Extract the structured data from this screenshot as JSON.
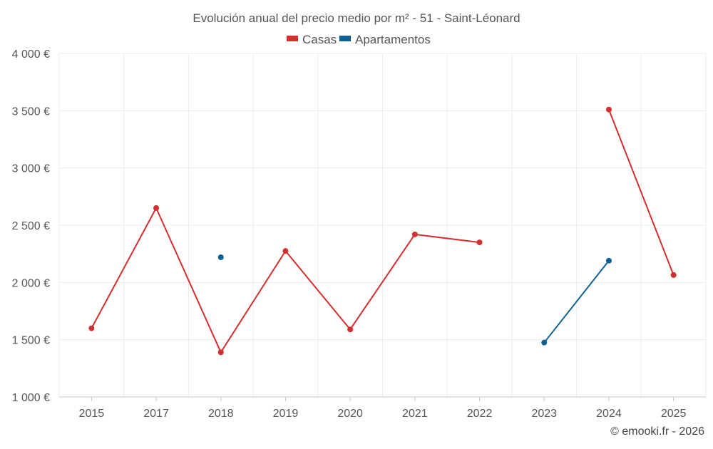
{
  "chart_data": {
    "type": "line",
    "title": "Evolución anual del precio medio por m² - 51 - Saint-Léonard",
    "categories": [
      "2015",
      "2017",
      "2018",
      "2019",
      "2020",
      "2021",
      "2022",
      "2023",
      "2024",
      "2025"
    ],
    "series": [
      {
        "name": "Casas",
        "color": "#d32f2f",
        "values": [
          1600,
          2650,
          1390,
          2275,
          1590,
          2420,
          2350,
          null,
          3510,
          2065
        ]
      },
      {
        "name": "Apartamentos",
        "color": "#0d6197",
        "values": [
          null,
          null,
          2220,
          null,
          null,
          null,
          null,
          1475,
          2190,
          null
        ]
      }
    ],
    "ylim": [
      1000,
      4000
    ],
    "yticks": [
      1000,
      1500,
      2000,
      2500,
      3000,
      3500,
      4000
    ],
    "ytick_labels": [
      "1 000 €",
      "1 500 €",
      "2 000 €",
      "2 500 €",
      "3 000 €",
      "3 500 €",
      "4 000 €"
    ],
    "legend_position": "top-center",
    "grid": true,
    "xlabel": "",
    "ylabel": ""
  },
  "footer": {
    "credit": "© emooki.fr - 2026"
  }
}
